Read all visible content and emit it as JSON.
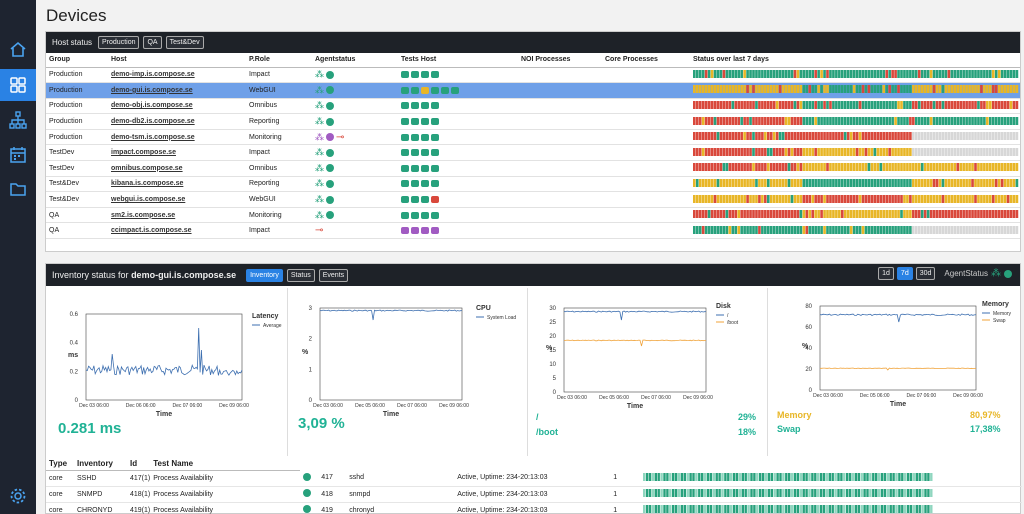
{
  "page": {
    "title": "Devices"
  },
  "host_status": {
    "label": "Host status",
    "filters": [
      "Production",
      "QA",
      "Test&Dev"
    ],
    "columns": [
      "Group",
      "Host",
      "P.Role",
      "Agentstatus",
      "Tests Host",
      "NOI Processes",
      "Core Processes",
      "Status over last 7 days"
    ],
    "rows": [
      {
        "group": "Production",
        "host": "demo-imp.is.compose.se",
        "role": "Impact",
        "agent": [
          "g",
          "g"
        ],
        "tests": [
          "g",
          "g",
          "g",
          "g"
        ],
        "stripe": "ggg"
      },
      {
        "group": "Production",
        "host": "demo-gui.is.compose.se",
        "role": "WebGUI",
        "agent": [
          "g",
          "g"
        ],
        "tests": [
          "g",
          "g",
          "y",
          "g",
          "g",
          "g"
        ],
        "stripe": "ygy",
        "selected": true
      },
      {
        "group": "Production",
        "host": "demo-obj.is.compose.se",
        "role": "Omnibus",
        "agent": [
          "g",
          "g"
        ],
        "tests": [
          "g",
          "g",
          "g",
          "g"
        ],
        "stripe": "rgr"
      },
      {
        "group": "Production",
        "host": "demo-db2.is.compose.se",
        "role": "Reporting",
        "agent": [
          "g",
          "g"
        ],
        "tests": [
          "g",
          "g",
          "g",
          "g"
        ],
        "stripe": "rgg"
      },
      {
        "group": "Production",
        "host": "demo-tsm.is.compose.se",
        "role": "Monitoring",
        "agent": [
          "p",
          "p",
          "k"
        ],
        "tests": [
          "g",
          "g",
          "g",
          "g"
        ],
        "stripe": "rrw"
      },
      {
        "group": "TestDev",
        "host": "impact.compose.se",
        "role": "Impact",
        "agent": [
          "g",
          "g"
        ],
        "tests": [
          "g",
          "g",
          "g",
          "g"
        ],
        "stripe": "ryw"
      },
      {
        "group": "TestDev",
        "host": "omnibus.compose.se",
        "role": "Omnibus",
        "agent": [
          "g",
          "g"
        ],
        "tests": [
          "g",
          "g",
          "g",
          "g"
        ],
        "stripe": "ryy"
      },
      {
        "group": "Test&Dev",
        "host": "kibana.is.compose.se",
        "role": "Reporting",
        "agent": [
          "g",
          "g"
        ],
        "tests": [
          "g",
          "g",
          "g",
          "g"
        ],
        "stripe": "ygy"
      },
      {
        "group": "Test&Dev",
        "host": "webgui.is.compose.se",
        "role": "WebGUI",
        "agent": [
          "g",
          "g"
        ],
        "tests": [
          "g",
          "g",
          "g",
          "r"
        ],
        "stripe": "yry"
      },
      {
        "group": "QA",
        "host": "sm2.is.compose.se",
        "role": "Monitoring",
        "agent": [
          "g",
          "g"
        ],
        "tests": [
          "g",
          "g",
          "g",
          "g"
        ],
        "stripe": "ryr"
      },
      {
        "group": "QA",
        "host": "ccimpact.is.compose.se",
        "role": "Impact",
        "agent": [
          "k"
        ],
        "tests": [
          "p",
          "p",
          "p",
          "p"
        ],
        "stripe": "ggw"
      }
    ]
  },
  "inventory": {
    "title_prefix": "Inventory status for",
    "title_host": "demo-gui.is.compose.se",
    "tabs": [
      "Inventory",
      "Status",
      "Events"
    ],
    "ranges": [
      "1d",
      "7d",
      "30d"
    ],
    "agent_status_label": "AgentStatus",
    "latency": {
      "title": "Latency",
      "legend": "Average",
      "ylabel": "ms",
      "xlabel": "Time",
      "yticks": [
        "0.6",
        "0.4",
        "0.2",
        "0"
      ],
      "xticks": [
        "Dec 03 06:00",
        "Dec 06 06:00",
        "Dec 07 06:00",
        "Dec 09 06:00"
      ],
      "value": "0.281 ms"
    },
    "cpu": {
      "title": "CPU",
      "legend": "System Load",
      "ylabel": "%",
      "xlabel": "Time",
      "yticks": [
        "3",
        "2",
        "1",
        "0"
      ],
      "xticks": [
        "Dec 03 06:00",
        "Dec 05 06:00",
        "Dec 07 06:00",
        "Dec 09 06:00"
      ],
      "value": "3,09 %"
    },
    "disk": {
      "title": "Disk",
      "legend": [
        "/",
        "/boot"
      ],
      "ylabel": "%",
      "xlabel": "Time",
      "yticks": [
        "30",
        "25",
        "20",
        "15",
        "10",
        "5",
        "0"
      ],
      "xticks": [
        "Dec 03 06:00",
        "Dec 05 06:00",
        "Dec 07 06:00",
        "Dec 09 06:00"
      ],
      "rows": [
        {
          "k": "/",
          "v": "29%"
        },
        {
          "k": "/boot",
          "v": "18%"
        }
      ]
    },
    "memory": {
      "title": "Memory",
      "legend": [
        "Memory",
        "Swap"
      ],
      "ylabel": "%",
      "xlabel": "Time",
      "yticks": [
        "80",
        "60",
        "40",
        "20",
        "0"
      ],
      "xticks": [
        "Dec 03 06:00",
        "Dec 05 06:00",
        "Dec 07 06:00",
        "Dec 09 06:00"
      ],
      "rows": [
        {
          "k": "Memory",
          "v": "80,97%"
        },
        {
          "k": "Swap",
          "v": "17,38%"
        }
      ]
    },
    "table": {
      "columns": [
        "Type",
        "Inventory",
        "Id",
        "Test Name"
      ],
      "rows": [
        {
          "type": "core",
          "inv": "SSHD",
          "id": "417(1)",
          "name": "Process Availability",
          "num": "417",
          "proc": "sshd",
          "uptime": "Active, Uptime: 234-20:13:03",
          "count": "1"
        },
        {
          "type": "core",
          "inv": "SNMPD",
          "id": "418(1)",
          "name": "Process Availability",
          "num": "418",
          "proc": "snmpd",
          "uptime": "Active, Uptime: 234-20:13:03",
          "count": "1"
        },
        {
          "type": "core",
          "inv": "CHRONYD",
          "id": "419(1)",
          "name": "Process Availability",
          "num": "419",
          "proc": "chronyd",
          "uptime": "Active, Uptime: 234-20:13:03",
          "count": "1"
        }
      ]
    }
  }
}
